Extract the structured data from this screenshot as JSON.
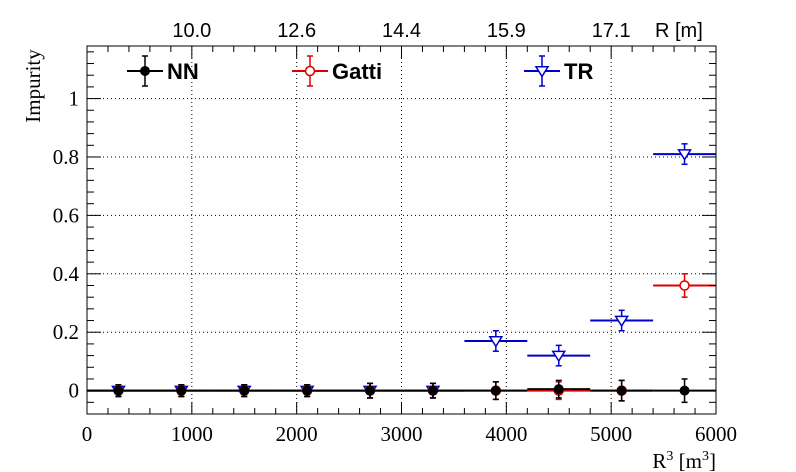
{
  "chart_data": {
    "type": "scatter",
    "xlabel": "R",
    "xlabel_sup": "3",
    "xunit_open": " [m",
    "xunit_sup": "3",
    "xunit_close": "]",
    "ylabel": "Impurity",
    "top_axis_label": "R [m]",
    "top_axis_ticks": [
      {
        "label": "10.0",
        "x": 1000
      },
      {
        "label": "12.6",
        "x": 2000
      },
      {
        "label": "14.4",
        "x": 3000
      },
      {
        "label": "15.9",
        "x": 4000
      },
      {
        "label": "17.1",
        "x": 5000
      }
    ],
    "xlim": [
      0,
      6000
    ],
    "ylim": [
      -0.08,
      1.18
    ],
    "x_ticks": [
      0,
      1000,
      2000,
      3000,
      4000,
      5000,
      6000
    ],
    "y_ticks": [
      0,
      0.2,
      0.4,
      0.6,
      0.8,
      1
    ],
    "y_tick_labels": [
      "0",
      "0.2",
      "0.4",
      "0.6",
      "0.8",
      "1"
    ],
    "grid": true,
    "legend_placement": "top",
    "series": [
      {
        "name": "NN",
        "color": "#000000",
        "marker": "filled-circle",
        "points": [
          {
            "x": 300,
            "xerr": 300,
            "y": 0,
            "yerr": 0.02
          },
          {
            "x": 900,
            "xerr": 300,
            "y": 0,
            "yerr": 0.02
          },
          {
            "x": 1500,
            "xerr": 300,
            "y": 0,
            "yerr": 0.02
          },
          {
            "x": 2100,
            "xerr": 300,
            "y": 0,
            "yerr": 0.02
          },
          {
            "x": 2700,
            "xerr": 300,
            "y": 0,
            "yerr": 0.025
          },
          {
            "x": 3300,
            "xerr": 300,
            "y": 0,
            "yerr": 0.025
          },
          {
            "x": 3900,
            "xerr": 300,
            "y": 0,
            "yerr": 0.03
          },
          {
            "x": 4500,
            "xerr": 300,
            "y": 0.005,
            "yerr": 0.03
          },
          {
            "x": 5100,
            "xerr": 300,
            "y": 0,
            "yerr": 0.035
          },
          {
            "x": 5700,
            "xerr": 300,
            "y": 0,
            "yerr": 0.04
          },
          {
            "x": 6000,
            "xerr": 0,
            "y": 0,
            "yerr": 0
          }
        ]
      },
      {
        "name": "Gatti",
        "color": "#dd0000",
        "marker": "open-circle",
        "points": [
          {
            "x": 300,
            "xerr": 300,
            "y": 0,
            "yerr": 0.02
          },
          {
            "x": 900,
            "xerr": 300,
            "y": 0,
            "yerr": 0.02
          },
          {
            "x": 1500,
            "xerr": 300,
            "y": 0,
            "yerr": 0.02
          },
          {
            "x": 2100,
            "xerr": 300,
            "y": 0,
            "yerr": 0.02
          },
          {
            "x": 2700,
            "xerr": 300,
            "y": 0,
            "yerr": 0.025
          },
          {
            "x": 3300,
            "xerr": 300,
            "y": 0,
            "yerr": 0.025
          },
          {
            "x": 3900,
            "xerr": 300,
            "y": 0,
            "yerr": 0.03
          },
          {
            "x": 4500,
            "xerr": 300,
            "y": 0,
            "yerr": 0.03
          },
          {
            "x": 5100,
            "xerr": 300,
            "y": 0,
            "yerr": 0.035
          },
          {
            "x": 5700,
            "xerr": 300,
            "y": 0.36,
            "yerr": 0.04
          }
        ]
      },
      {
        "name": "TR",
        "color": "#0000cc",
        "marker": "open-triangle-down",
        "points": [
          {
            "x": 300,
            "xerr": 300,
            "y": 0,
            "yerr": 0.02
          },
          {
            "x": 900,
            "xerr": 300,
            "y": 0,
            "yerr": 0.02
          },
          {
            "x": 1500,
            "xerr": 300,
            "y": 0,
            "yerr": 0.02
          },
          {
            "x": 2100,
            "xerr": 300,
            "y": 0,
            "yerr": 0.02
          },
          {
            "x": 2700,
            "xerr": 300,
            "y": 0,
            "yerr": 0.025
          },
          {
            "x": 3300,
            "xerr": 300,
            "y": 0,
            "yerr": 0.025
          },
          {
            "x": 3900,
            "xerr": 300,
            "y": 0.17,
            "yerr": 0.035
          },
          {
            "x": 4500,
            "xerr": 300,
            "y": 0.12,
            "yerr": 0.035
          },
          {
            "x": 5100,
            "xerr": 300,
            "y": 0.24,
            "yerr": 0.035
          },
          {
            "x": 5700,
            "xerr": 300,
            "y": 0.81,
            "yerr": 0.035
          }
        ]
      }
    ]
  }
}
